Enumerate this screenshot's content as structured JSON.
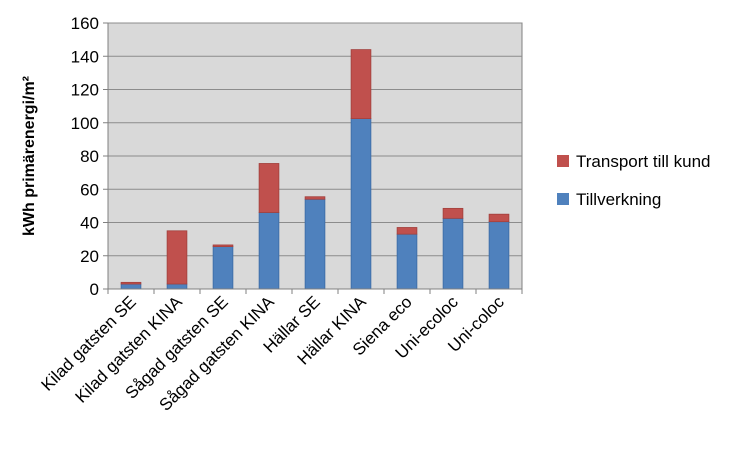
{
  "chart_data": {
    "type": "bar",
    "stacked": true,
    "categories": [
      "Kilad gatsten SE",
      "Kilad gatsten KINA",
      "Sågad gatsten SE",
      "Sågad gatsten KINA",
      "Hällar SE",
      "Hällar KINA",
      "Siena eco",
      "Uni-ecoloc",
      "Uni-coloc"
    ],
    "series": [
      {
        "name": "Tillverkning",
        "color": "#4F81BD",
        "values": [
          3,
          3,
          25.5,
          46,
          54,
          102.5,
          33,
          42.5,
          40.5
        ]
      },
      {
        "name": "Transport till kund",
        "color": "#C0504D",
        "values": [
          1,
          32,
          1,
          29.5,
          1.5,
          41.5,
          4,
          6,
          4.5
        ]
      }
    ],
    "title": "",
    "xlabel": "",
    "ylabel": "kWh primärenergi/m²",
    "ylim": [
      0,
      160
    ],
    "yticks": [
      "0",
      "20",
      "40",
      "60",
      "80",
      "100",
      "120",
      "140",
      "160"
    ],
    "grid": true,
    "plot_background": "#D9D9D9",
    "legend_position": "right",
    "legend": [
      {
        "label": "Transport till kund",
        "color": "#C0504D"
      },
      {
        "label": "Tillverkning",
        "color": "#4F81BD"
      }
    ]
  }
}
